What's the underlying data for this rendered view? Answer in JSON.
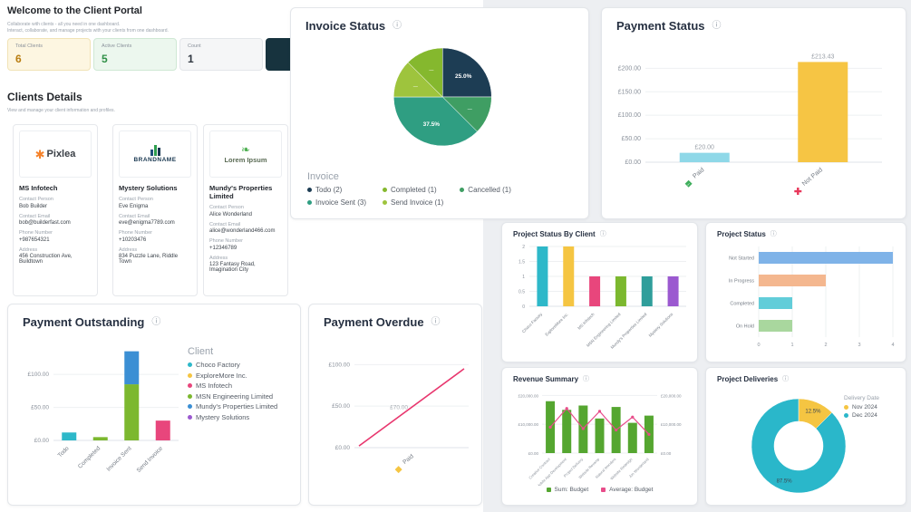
{
  "icons": {
    "info": "ⓘ"
  },
  "page": {
    "title": "Welcome to the Client Portal",
    "subtitle_line1": "Collaborate with clients - all you need in one dashboard.",
    "subtitle_line2": "Interact, collaborate, and manage projects with your clients from one dashboard."
  },
  "stats": [
    {
      "label": "Total Clients",
      "value": "6"
    },
    {
      "label": "Active Clients",
      "value": "5"
    },
    {
      "label": "Count",
      "value": "1"
    }
  ],
  "clients_section": {
    "title": "Clients Details",
    "subtitle": "View and manage your client information and profiles.",
    "field_labels": {
      "person": "Contact Person",
      "email": "Contact Email",
      "phone": "Phone Number",
      "address": "Address"
    },
    "clients": [
      {
        "logo_text": "Pixlea",
        "name": "MS Infotech",
        "person": "Bob Builder",
        "email": "bob@builderfast.com",
        "phone": "+987654321",
        "address": "456 Construction Ave, Buildtown"
      },
      {
        "logo_text": "BRANDNAME",
        "name": "Mystery Solutions",
        "person": "Eve Enigma",
        "email": "eve@enigma7789.com",
        "phone": "+10203476",
        "address": "834 Puzzle Lane, Riddle Town"
      },
      {
        "logo_text": "Lorem Ipsum",
        "name": "Mundy's Properties Limited",
        "person": "Alice Wonderland",
        "email": "alice@wonderland466.com",
        "phone": "+12346789",
        "address": "123 Fantasy Road, Imagination City"
      }
    ]
  },
  "chart_data": [
    {
      "id": "invoice-status",
      "type": "pie",
      "title": "Invoice Status",
      "legend_title": "Invoice",
      "slices": [
        {
          "label": "Todo",
          "count": 2,
          "pct_label": "25.0%",
          "color": "#1d3d54"
        },
        {
          "label": "Cancelled",
          "count": 1,
          "pct_label": "—",
          "color": "#3f9e63"
        },
        {
          "label": "Invoice Sent",
          "count": 3,
          "pct_label": "37.5%",
          "color": "#2f9e82"
        },
        {
          "label": "Send Invoice",
          "count": 1,
          "pct_label": "—",
          "color": "#9ec43d"
        },
        {
          "label": "Completed",
          "count": 1,
          "pct_label": "—",
          "color": "#85b82e"
        }
      ],
      "legend": [
        {
          "label": "Todo (2)",
          "color": "#1d3d54"
        },
        {
          "label": "Invoice Sent (3)",
          "color": "#2f9e82"
        },
        {
          "label": "Completed (1)",
          "color": "#85b82e"
        },
        {
          "label": "Send Invoice (1)",
          "color": "#9ec43d"
        },
        {
          "label": "Cancelled (1)",
          "color": "#3f9e63"
        }
      ]
    },
    {
      "id": "payment-status",
      "type": "bar",
      "title": "Payment Status",
      "y_max": 220,
      "y_ticks": [
        {
          "label": "£200.00",
          "value": 200
        },
        {
          "label": "£150.00",
          "value": 150
        },
        {
          "label": "£100.00",
          "value": 100
        },
        {
          "label": "£50.00",
          "value": 50
        },
        {
          "label": "£0.00",
          "value": 0
        }
      ],
      "categories": [
        {
          "label": "Paid",
          "value": 20,
          "value_label": "£20.00",
          "color": "#8fd8e8",
          "icon": "diamond-check",
          "icon_color": "#3fae5c"
        },
        {
          "label": "Not Paid",
          "value": 213.43,
          "value_label": "£213.43",
          "color": "#f6c544",
          "icon": "plus",
          "icon_color": "#e8365a"
        }
      ]
    },
    {
      "id": "project-status-by-client",
      "type": "bar",
      "title": "Project Status By Client",
      "y_max": 2,
      "y_ticks": [
        {
          "label": "2",
          "value": 2
        },
        {
          "label": "1.5",
          "value": 1.5
        },
        {
          "label": "1",
          "value": 1
        },
        {
          "label": "0.5",
          "value": 0.5
        },
        {
          "label": "0",
          "value": 0
        }
      ],
      "categories": [
        {
          "label": "Choco Factory",
          "value": 2,
          "color": "#2eb8c9"
        },
        {
          "label": "ExploreMore Inc.",
          "value": 2,
          "color": "#f5c542"
        },
        {
          "label": "MS Infotech",
          "value": 1,
          "color": "#e8467c"
        },
        {
          "label": "MSN Engineering Limited",
          "value": 1,
          "color": "#7cb82f"
        },
        {
          "label": "Mundy's Properties Limited",
          "value": 1,
          "color": "#2f9e9b"
        },
        {
          "label": "Mystery Solutions",
          "value": 1,
          "color": "#9b59d0"
        }
      ]
    },
    {
      "id": "project-status",
      "type": "hbar",
      "title": "Project Status",
      "x_max": 4,
      "x_ticks": [
        0,
        1,
        2,
        3,
        4
      ],
      "categories": [
        {
          "label": "Not Started",
          "value": 4,
          "color": "#7fb3e8"
        },
        {
          "label": "In Progress",
          "value": 2,
          "color": "#f4b78f"
        },
        {
          "label": "Completed",
          "value": 1,
          "color": "#62cdd9"
        },
        {
          "label": "On Hold",
          "value": 1,
          "color": "#a9d79e"
        }
      ]
    },
    {
      "id": "payment-outstanding",
      "type": "stacked-bar",
      "title": "Payment Outstanding",
      "legend_title": "Client",
      "y_max": 140,
      "y_ticks": [
        {
          "label": "£100.00",
          "value": 100
        },
        {
          "label": "£50.00",
          "value": 50
        },
        {
          "label": "£0.00",
          "value": 0
        }
      ],
      "legend": [
        {
          "label": "Choco Factory",
          "color": "#2eb8c9"
        },
        {
          "label": "ExploreMore Inc.",
          "color": "#f5c542"
        },
        {
          "label": "MS Infotech",
          "color": "#e8467c"
        },
        {
          "label": "MSN Engineering Limited",
          "color": "#7cb82f"
        },
        {
          "label": "Mundy's Properties Limited",
          "color": "#3b8fd4"
        },
        {
          "label": "Mystery Solutions",
          "color": "#9b59d0"
        }
      ],
      "categories": [
        {
          "label": "Todo",
          "segments": [
            {
              "client": "Choco Factory",
              "value": 12,
              "color": "#2eb8c9"
            }
          ]
        },
        {
          "label": "Completed",
          "segments": [
            {
              "client": "MSN Engineering Limited",
              "value": 5,
              "color": "#7cb82f"
            }
          ]
        },
        {
          "label": "Invoice Sent",
          "segments": [
            {
              "client": "MSN Engineering Limited",
              "value": 85,
              "color": "#7cb82f"
            },
            {
              "client": "Mundy's Properties Limited",
              "value": 50,
              "color": "#3b8fd4"
            }
          ]
        },
        {
          "label": "Send Invoice",
          "segments": [
            {
              "client": "MS Infotech",
              "value": 30,
              "color": "#e8467c"
            }
          ]
        }
      ]
    },
    {
      "id": "payment-overdue",
      "type": "line",
      "title": "Payment Overdue",
      "y_max": 120,
      "y_ticks": [
        {
          "label": "£100.00",
          "value": 100
        },
        {
          "label": "£50.00",
          "value": 50
        },
        {
          "label": "£0.00",
          "value": 0
        }
      ],
      "line_color": "#e8366e",
      "points": [
        {
          "value": 2
        },
        {
          "value": 95
        }
      ],
      "annotation": "£70.00",
      "x_labels": [
        {
          "label": "Paid",
          "icon": "diamond",
          "icon_color": "#f5c542"
        }
      ]
    },
    {
      "id": "revenue-summary",
      "type": "combo",
      "title": "Revenue Summary",
      "y_max": 22000,
      "y_ticks": [
        {
          "label": "£20,000.00",
          "value": 20000
        },
        {
          "label": "£10,000.00",
          "value": 10000
        },
        {
          "label": "£0.00",
          "value": 0
        }
      ],
      "bar_color": "#55a630",
      "line_color": "#e84d8a",
      "categories": [
        "Creative Contract",
        "Mobile App Development",
        "Project Delivery",
        "Website Revamp",
        "Natural Wonders",
        "Website Redesign",
        "Jon Wonderland"
      ],
      "bars": [
        18000,
        15000,
        16500,
        12000,
        16000,
        10500,
        13000
      ],
      "line": [
        9000,
        15500,
        8500,
        14500,
        8000,
        12500,
        6500
      ],
      "legend": [
        {
          "label": "Sum: Budget",
          "color": "#55a630"
        },
        {
          "label": "Average: Budget",
          "color": "#e84d8a"
        }
      ]
    },
    {
      "id": "project-deliveries",
      "type": "donut",
      "title": "Project Deliveries",
      "legend_title": "Delivery Date",
      "slices": [
        {
          "label": "Nov 2024",
          "pct": 12.5,
          "pct_label": "12.5%",
          "color": "#f5c542"
        },
        {
          "label": "Dec 2024",
          "pct": 87.5,
          "pct_label": "87.5%",
          "color": "#2ab7ca"
        }
      ]
    }
  ]
}
